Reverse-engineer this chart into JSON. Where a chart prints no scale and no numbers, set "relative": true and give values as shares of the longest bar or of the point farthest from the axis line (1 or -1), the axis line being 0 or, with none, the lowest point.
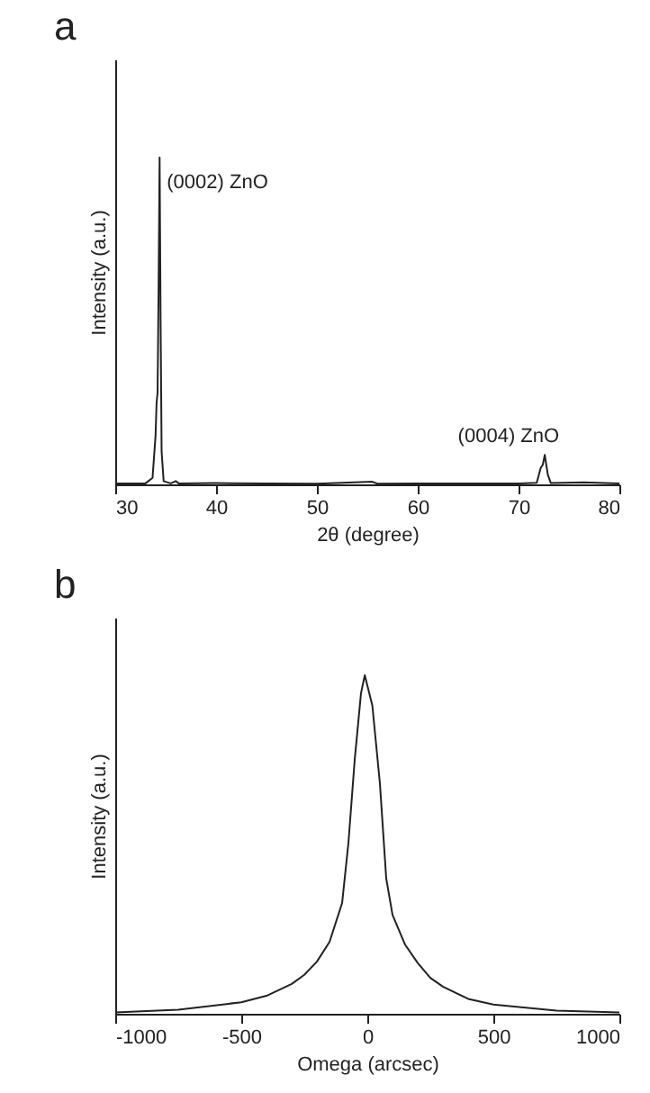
{
  "chart_data": [
    {
      "type": "line",
      "title": "a",
      "xlabel": "2θ (degree)",
      "ylabel": "Intensity (a.u.)",
      "relative": true,
      "xlim": [
        30,
        80
      ],
      "xticks": [
        30,
        40,
        50,
        60,
        70,
        80
      ],
      "x": [
        30,
        33,
        33.7,
        34.0,
        34.1,
        34.2,
        34.3,
        34.4,
        34.5,
        34.6,
        34.8,
        35.5,
        36,
        36.3,
        40,
        45,
        50,
        55.5,
        56,
        60,
        65,
        70,
        71.8,
        72.2,
        72.4,
        72.6,
        72.9,
        73.2,
        76.5,
        80
      ],
      "series": [
        {
          "color": "#222222",
          "values": [
            0.003,
            0.003,
            0.02,
            0.15,
            0.25,
            0.28,
            0.6,
            1,
            0.5,
            0.1,
            0.01,
            0.003,
            0.01,
            0.003,
            0.004,
            0.003,
            0.002,
            0.008,
            0.002,
            0.003,
            0.003,
            0.003,
            0.005,
            0.05,
            0.06,
            0.09,
            0.03,
            0.004,
            0.006,
            0.003
          ]
        }
      ],
      "annotations": [
        {
          "text": "(0002) ZnO",
          "x": 34.4,
          "y": 1
        },
        {
          "text": "(0004) ZnO",
          "x": 72.6,
          "y": 0.09
        }
      ]
    },
    {
      "type": "line",
      "title": "b",
      "xlabel": "Omega (arcsec)",
      "ylabel": "Intensity (a.u.)",
      "relative": true,
      "xlim": [
        -1000,
        1000
      ],
      "xticks": [
        -1000,
        -500,
        0,
        500,
        1000
      ],
      "x": [
        -1000,
        -750,
        -500,
        -400,
        -300,
        -250,
        -200,
        -150,
        -100,
        -75,
        -50,
        -25,
        -10,
        0,
        20,
        50,
        75,
        100,
        150,
        200,
        250,
        300,
        400,
        500,
        750,
        1000
      ],
      "series": [
        {
          "color": "#222222",
          "values": [
            0.004,
            0.012,
            0.034,
            0.053,
            0.088,
            0.115,
            0.154,
            0.212,
            0.327,
            0.504,
            0.75,
            0.947,
            1,
            0.97,
            0.91,
            0.68,
            0.4,
            0.292,
            0.204,
            0.15,
            0.106,
            0.08,
            0.044,
            0.027,
            0.009,
            0.004
          ]
        }
      ]
    }
  ]
}
